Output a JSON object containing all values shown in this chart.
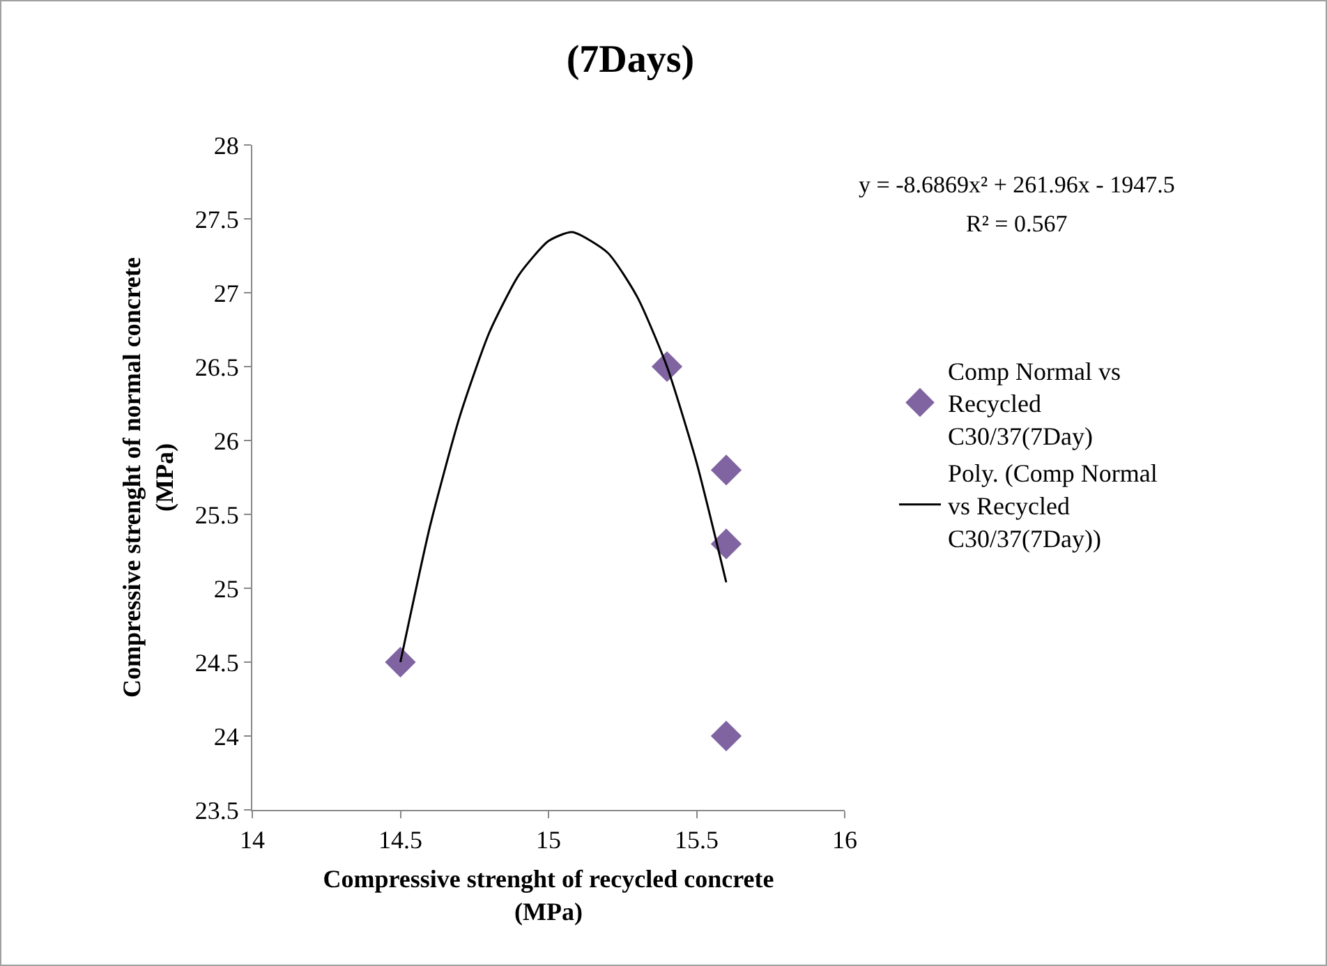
{
  "chart_data": {
    "type": "scatter",
    "title": "(7Days)",
    "xlabel": "Compressive strenght of recycled concrete (MPa)",
    "ylabel": "Compressive strenght of normal concrete (MPa)",
    "xlim": [
      14,
      16
    ],
    "xticks": [
      14,
      14.5,
      15,
      15.5,
      16
    ],
    "ylim": [
      23.5,
      28
    ],
    "yticks": [
      23.5,
      24,
      24.5,
      25,
      25.5,
      26,
      26.5,
      27,
      27.5,
      28
    ],
    "grid": false,
    "legend": "right",
    "marker": "diamond",
    "series": [
      {
        "name": "Comp Normal vs Recycled C30/37(7Day)",
        "color": "#8064a2",
        "x": [
          14.5,
          15.4,
          15.6,
          15.6,
          15.6
        ],
        "values": [
          24.5,
          26.5,
          25.8,
          25.3,
          24.0
        ]
      },
      {
        "type": "line",
        "name": "Poly. (Comp Normal vs Recycled C30/37(7Day))",
        "color": "#000000",
        "line_style": "solid",
        "marker": "none",
        "x": [
          14.5,
          14.6,
          14.7,
          14.8,
          14.9,
          15.0,
          15.08,
          15.2,
          15.3,
          15.4,
          15.5,
          15.6
        ],
        "values": [
          24.5,
          25.42,
          26.16,
          26.73,
          27.12,
          27.35,
          27.41,
          27.27,
          26.97,
          26.5,
          25.85,
          25.04
        ]
      }
    ],
    "annotations": [
      "y = -8.6869x² + 261.96x - 1947.5",
      "R² = 0.567"
    ]
  }
}
